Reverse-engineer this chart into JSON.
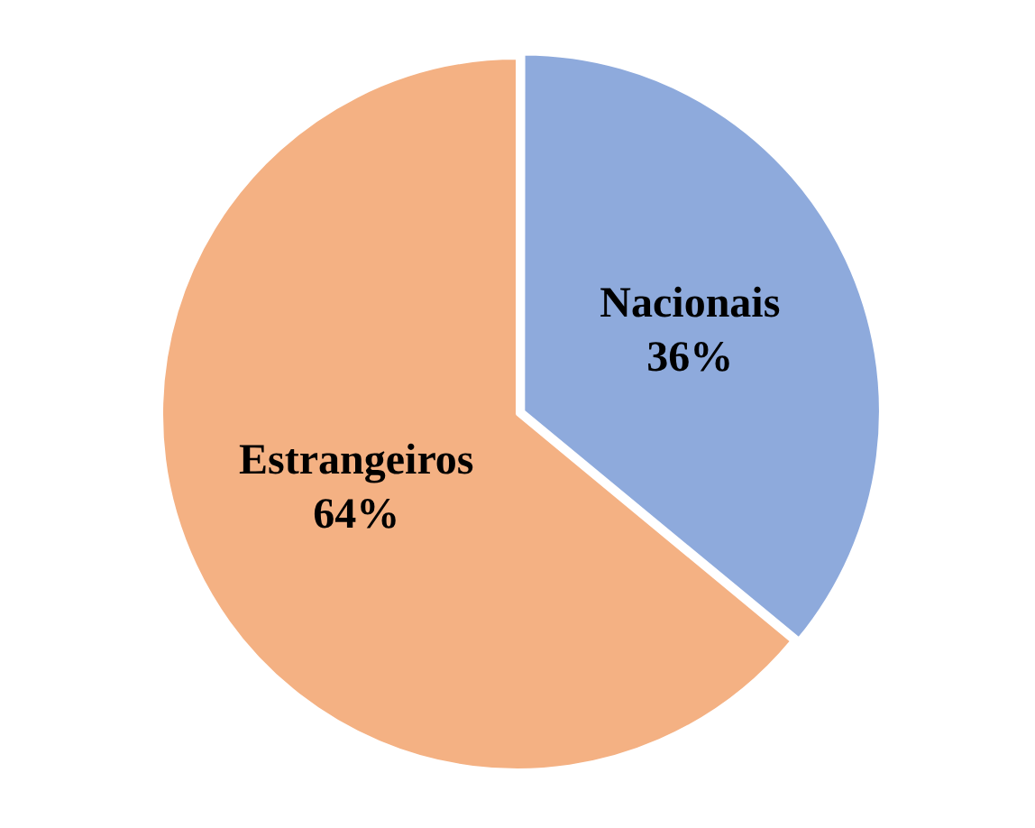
{
  "chart_data": {
    "type": "pie",
    "categories": [
      "Nacionais",
      "Estrangeiros"
    ],
    "values": [
      36,
      64
    ],
    "colors": [
      "#8eaadc",
      "#f4b183"
    ],
    "value_labels": [
      "36%",
      "64%"
    ],
    "legend": false
  }
}
